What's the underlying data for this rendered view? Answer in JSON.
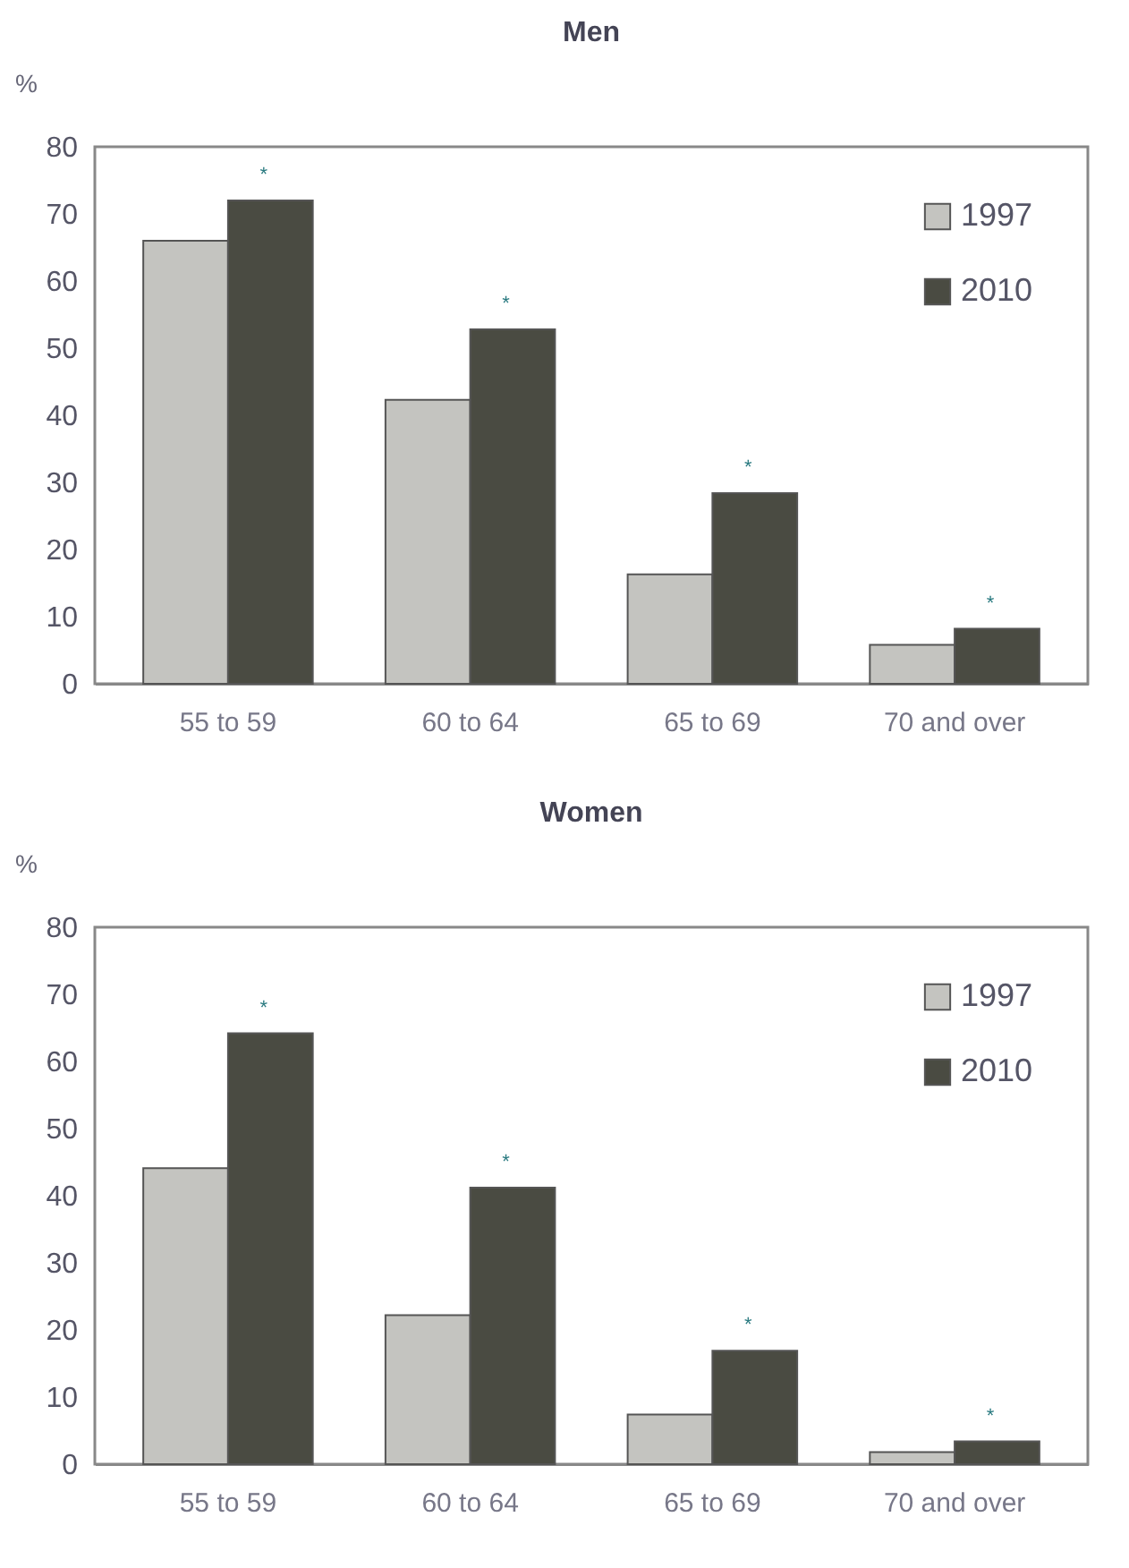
{
  "chart_data": [
    {
      "type": "bar",
      "title": "Men",
      "ylabel": "%",
      "categories": [
        "55 to 59",
        "60 to 64",
        "65 to 69",
        "70 and over"
      ],
      "series": [
        {
          "name": "1997",
          "color": "#c4c4c0",
          "values": [
            66,
            42.3,
            16.3,
            5.8
          ]
        },
        {
          "name": "2010",
          "color": "#4a4b42",
          "values": [
            72,
            52.8,
            28.4,
            8.2
          ]
        }
      ],
      "ylim": [
        0,
        80
      ],
      "yticks": [
        0,
        10,
        20,
        30,
        40,
        50,
        60,
        70,
        80
      ],
      "grid": false,
      "legend": "top right",
      "annotations": [
        {
          "text": "*",
          "x": "55 to 59",
          "y": 72
        },
        {
          "text": "*",
          "x": "60 to 64",
          "y": 52.8
        },
        {
          "text": "*",
          "x": "65 to 69",
          "y": 28.4
        },
        {
          "text": "*",
          "x": "70 and over",
          "y": 8.2
        }
      ]
    },
    {
      "type": "bar",
      "title": "Women",
      "ylabel": "%",
      "categories": [
        "55 to 59",
        "60 to 64",
        "65 to 69",
        "70 and over"
      ],
      "series": [
        {
          "name": "1997",
          "color": "#c4c4c0",
          "values": [
            44.1,
            22.2,
            7.4,
            1.8
          ]
        },
        {
          "name": "2010",
          "color": "#4a4b42",
          "values": [
            64.2,
            41.2,
            16.9,
            3.4
          ]
        }
      ],
      "ylim": [
        0,
        80
      ],
      "yticks": [
        0,
        10,
        20,
        30,
        40,
        50,
        60,
        70,
        80
      ],
      "grid": false,
      "legend": "top right",
      "annotations": [
        {
          "text": "*",
          "x": "55 to 59",
          "y": 64.2
        },
        {
          "text": "*",
          "x": "60 to 64",
          "y": 41.2
        },
        {
          "text": "*",
          "x": "65 to 69",
          "y": 16.9
        },
        {
          "text": "*",
          "x": "70 and over",
          "y": 3.4
        }
      ]
    }
  ]
}
